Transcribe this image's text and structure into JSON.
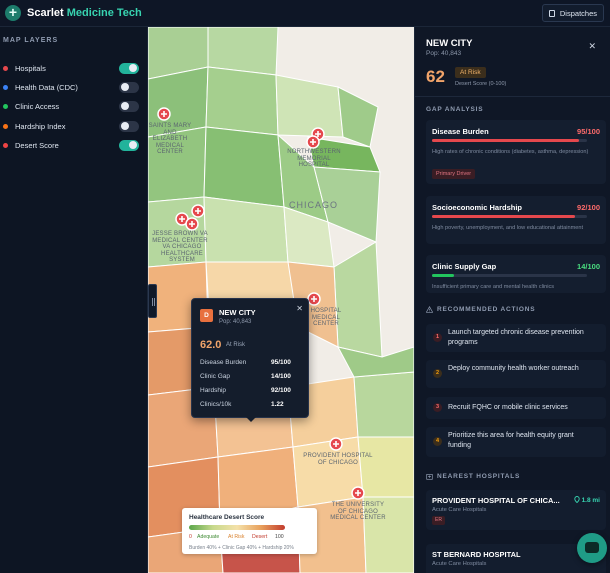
{
  "app": {
    "brand_part1": "Scarlet",
    "brand_part2": "Medicine Tech",
    "plus_icon": "plus-icon"
  },
  "header": {
    "dispatch_label": "Dispatches"
  },
  "sidebar": {
    "title": "MAP LAYERS",
    "layers": [
      {
        "label": "Hospitals",
        "color": "#e5484d",
        "on": true
      },
      {
        "label": "Health Data (CDC)",
        "color": "#3b82f6",
        "on": false
      },
      {
        "label": "Clinic Access",
        "color": "#22c55e",
        "on": false
      },
      {
        "label": "Hardship Index",
        "color": "#f97316",
        "on": false
      },
      {
        "label": "Desert Score",
        "color": "#ef4444",
        "on": true
      }
    ]
  },
  "map": {
    "city_label": "CHICAGO",
    "places": [
      "SAINTS MARY AND ELIZABETH MEDICAL CENTER",
      "NORTHWESTERN MEMORIAL HOSPITAL",
      "JESSE BROWN VA MEDICAL CENTER",
      "VA CHICAGO HEALTHCARE SYSTEM",
      "HOSPITAL MEDICAL CENTER",
      "PROVIDENT HOSPITAL OF CHICAGO",
      "THE UNIVERSITY OF CHICAGO MEDICAL CENTER"
    ]
  },
  "popup": {
    "badge": "D",
    "title": "NEW CITY",
    "pop": "Pop: 40,843",
    "score": "62.0",
    "status": "At Risk",
    "rows": [
      {
        "label": "Disease Burden",
        "value": "95/100"
      },
      {
        "label": "Clinic Gap",
        "value": "14/100"
      },
      {
        "label": "Hardship",
        "value": "92/100"
      },
      {
        "label": "Clinics/10k",
        "value": "1.22"
      }
    ]
  },
  "legend": {
    "title": "Healthcare Desert Score",
    "min": "0",
    "adequate": "Adequate",
    "at_risk": "At Risk",
    "desert": "Desert",
    "max": "100",
    "formula": "Burden 40% + Clinic Gap 40% + Hardship 20%"
  },
  "panel": {
    "city": "NEW CITY",
    "pop": "Pop: 40,843",
    "score": "62",
    "status": "At Risk",
    "score_sub": "Desert Score (0-100)",
    "gap_title": "GAP ANALYSIS",
    "gaps": [
      {
        "title": "Disease Burden",
        "value": "95/100",
        "pct": 95,
        "color": "#e5484d",
        "desc": "High rates of chronic conditions (diabetes, asthma, depression)",
        "tag": "Primary Driver"
      },
      {
        "title": "Socioeconomic Hardship",
        "value": "92/100",
        "pct": 92,
        "color": "#e5484d",
        "desc": "High poverty, unemployment, and low educational attainment",
        "tag": ""
      },
      {
        "title": "Clinic Supply Gap",
        "value": "14/100",
        "pct": 14,
        "color": "#22c55e",
        "desc": "Insufficient primary care and mental health clinics",
        "tag": ""
      }
    ],
    "actions_title": "RECOMMENDED ACTIONS",
    "actions": [
      {
        "num": "1",
        "text": "Launch targeted chronic disease prevention programs",
        "color": "#e5484d"
      },
      {
        "num": "2",
        "text": "Deploy community health worker outreach",
        "color": "#f59e0b"
      },
      {
        "num": "3",
        "text": "Recruit FQHC or mobile clinic services",
        "color": "#e5484d"
      },
      {
        "num": "4",
        "text": "Prioritize this area for health equity grant funding",
        "color": "#f59e0b"
      }
    ],
    "hospitals_title": "NEAREST HOSPITALS",
    "hospitals": [
      {
        "name": "PROVIDENT HOSPITAL OF CHICA...",
        "dist": "1.8 mi",
        "type": "Acute Care Hospitals",
        "tag": "ER"
      },
      {
        "name": "ST BERNARD HOSPITAL",
        "dist": "",
        "type": "Acute Care Hospitals",
        "tag": ""
      }
    ]
  }
}
